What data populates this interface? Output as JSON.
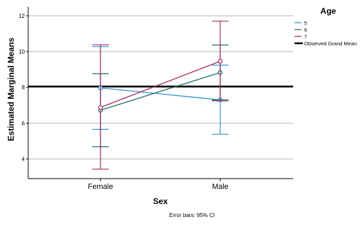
{
  "chart_data": {
    "type": "line",
    "xlabel": "Sex",
    "ylabel": "Estimated Marginal Means",
    "categories": [
      "Female",
      "Male"
    ],
    "ylim": [
      2.9,
      12.5
    ],
    "yticks": [
      4,
      6,
      8,
      10,
      12
    ],
    "grid": true,
    "legend_title": "Age",
    "legend_position": "top-right",
    "reference_line": {
      "name": "Observed Grand Mean",
      "value": 8.05,
      "color": "#000000"
    },
    "series": [
      {
        "name": "5",
        "color": "#2f95d0",
        "values": [
          7.97,
          7.3
        ],
        "ci_low": [
          5.65,
          5.38
        ],
        "ci_high": [
          10.28,
          9.24
        ]
      },
      {
        "name": "6",
        "color": "#1f6b66",
        "values": [
          6.72,
          8.83
        ],
        "ci_low": [
          4.68,
          7.3
        ],
        "ci_high": [
          8.76,
          10.37
        ]
      },
      {
        "name": "7",
        "color": "#a3295e",
        "values": [
          6.88,
          9.46
        ],
        "ci_low": [
          3.43,
          7.25
        ],
        "ci_high": [
          10.38,
          11.7
        ]
      }
    ],
    "footnote": "Error bars: 95% CI"
  }
}
